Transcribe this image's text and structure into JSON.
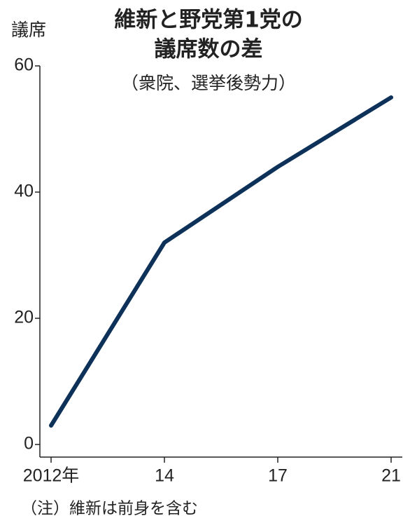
{
  "chart_data": {
    "type": "line",
    "title": [
      "維新と野党第1党の",
      "議席数の差"
    ],
    "subtitle": "（衆院、選挙後勢力）",
    "y_label": "議席",
    "note": "（注）維新は前身を含む",
    "categories": [
      "2012年",
      "14",
      "17",
      "21"
    ],
    "values": [
      3,
      32,
      44,
      55
    ],
    "color": "#0d3158",
    "ylim": [
      -2,
      60
    ],
    "yticks": [
      0,
      20,
      40,
      60
    ],
    "grid": false
  }
}
